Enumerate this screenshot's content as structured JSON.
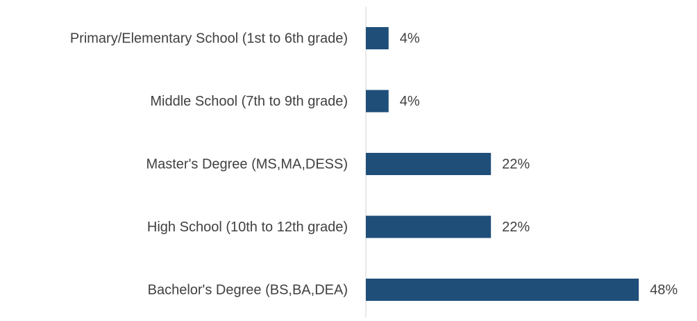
{
  "chart_data": {
    "type": "bar",
    "orientation": "horizontal",
    "categories": [
      "Primary/Elementary School (1st to 6th grade)",
      "Middle School (7th to 9th grade)",
      "Master's Degree (MS,MA,DESS)",
      "High School (10th to 12th grade)",
      "Bachelor's Degree (BS,BA,DEA)"
    ],
    "values": [
      4,
      4,
      22,
      22,
      48
    ],
    "value_labels": [
      "4%",
      "4%",
      "22%",
      "22%",
      "48%"
    ],
    "color": "#1f4e79"
  }
}
